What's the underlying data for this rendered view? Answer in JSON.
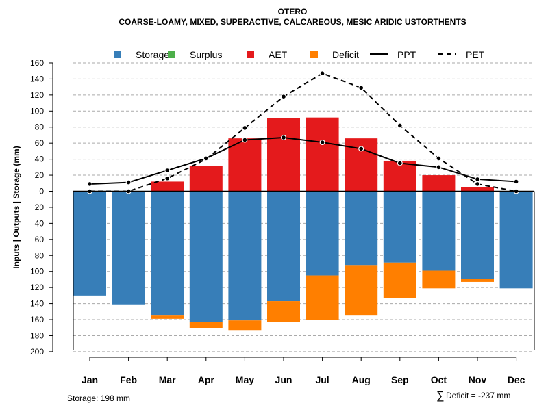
{
  "chart_data": {
    "type": "bar",
    "title": "OTERO",
    "subtitle": "COARSE-LOAMY, MIXED, SUPERACTIVE, CALCAREOUS, MESIC ARIDIC USTORTHENTS",
    "ylabel": "Inputs | Outputs | Storage    (mm)",
    "xlabel": "",
    "ylim": [
      -200,
      160
    ],
    "y_ticks": [
      {
        "value": 160,
        "label": "160"
      },
      {
        "value": 140,
        "label": "140"
      },
      {
        "value": 120,
        "label": "120"
      },
      {
        "value": 100,
        "label": "100"
      },
      {
        "value": 80,
        "label": "80"
      },
      {
        "value": 60,
        "label": "60"
      },
      {
        "value": 40,
        "label": "40"
      },
      {
        "value": 20,
        "label": "20"
      },
      {
        "value": 0,
        "label": "0"
      },
      {
        "value": -20,
        "label": "20"
      },
      {
        "value": -40,
        "label": "40"
      },
      {
        "value": -60,
        "label": "60"
      },
      {
        "value": -80,
        "label": "80"
      },
      {
        "value": -100,
        "label": "100"
      },
      {
        "value": -120,
        "label": "120"
      },
      {
        "value": -140,
        "label": "140"
      },
      {
        "value": -160,
        "label": "160"
      },
      {
        "value": -180,
        "label": "180"
      },
      {
        "value": -200,
        "label": "200"
      }
    ],
    "grid": true,
    "legend_position": "top",
    "categories": [
      "Jan",
      "Feb",
      "Mar",
      "Apr",
      "May",
      "Jun",
      "Jul",
      "Aug",
      "Sep",
      "Oct",
      "Nov",
      "Dec"
    ],
    "legend": [
      {
        "key": "storage",
        "label": "Storage",
        "kind": "box",
        "color": "#377eb8"
      },
      {
        "key": "surplus",
        "label": "Surplus",
        "kind": "box",
        "color": "#4daf4a"
      },
      {
        "key": "aet",
        "label": "AET",
        "kind": "box",
        "color": "#e41a1c"
      },
      {
        "key": "deficit",
        "label": "Deficit",
        "kind": "box",
        "color": "#ff7f00"
      },
      {
        "key": "ppt",
        "label": "PPT",
        "kind": "solid-line",
        "color": "#000000"
      },
      {
        "key": "pet",
        "label": "PET",
        "kind": "dashed-line",
        "color": "#000000"
      }
    ],
    "series": [
      {
        "name": "Storage",
        "color": "#377eb8",
        "values": [
          130,
          141,
          155,
          163,
          161,
          137,
          105,
          92,
          89,
          99,
          109,
          121
        ]
      },
      {
        "name": "Surplus",
        "color": "#4daf4a",
        "values": [
          0,
          0,
          0,
          0,
          0,
          0,
          0,
          0,
          0,
          0,
          0,
          0
        ]
      },
      {
        "name": "AET",
        "color": "#e41a1c",
        "values": [
          0,
          0,
          12,
          32,
          66,
          91,
          92,
          66,
          38,
          20,
          5,
          0
        ]
      },
      {
        "name": "Deficit",
        "color": "#ff7f00",
        "values": [
          0,
          0,
          4,
          8,
          12,
          26,
          55,
          63,
          44,
          22,
          4,
          0
        ]
      },
      {
        "name": "PPT",
        "color": "#000000",
        "values": [
          9,
          11,
          26,
          41,
          64,
          67,
          61,
          53,
          35,
          30,
          15,
          12
        ]
      },
      {
        "name": "PET",
        "color": "#000000",
        "values": [
          0,
          0,
          16,
          40,
          79,
          118,
          147,
          129,
          82,
          41,
          9,
          0
        ]
      }
    ],
    "storage_capacity_mm": 198,
    "storage_note": "Storage: 198 mm",
    "deficit_note": "Deficit = -237 mm",
    "deficit_symbol": "∑"
  }
}
